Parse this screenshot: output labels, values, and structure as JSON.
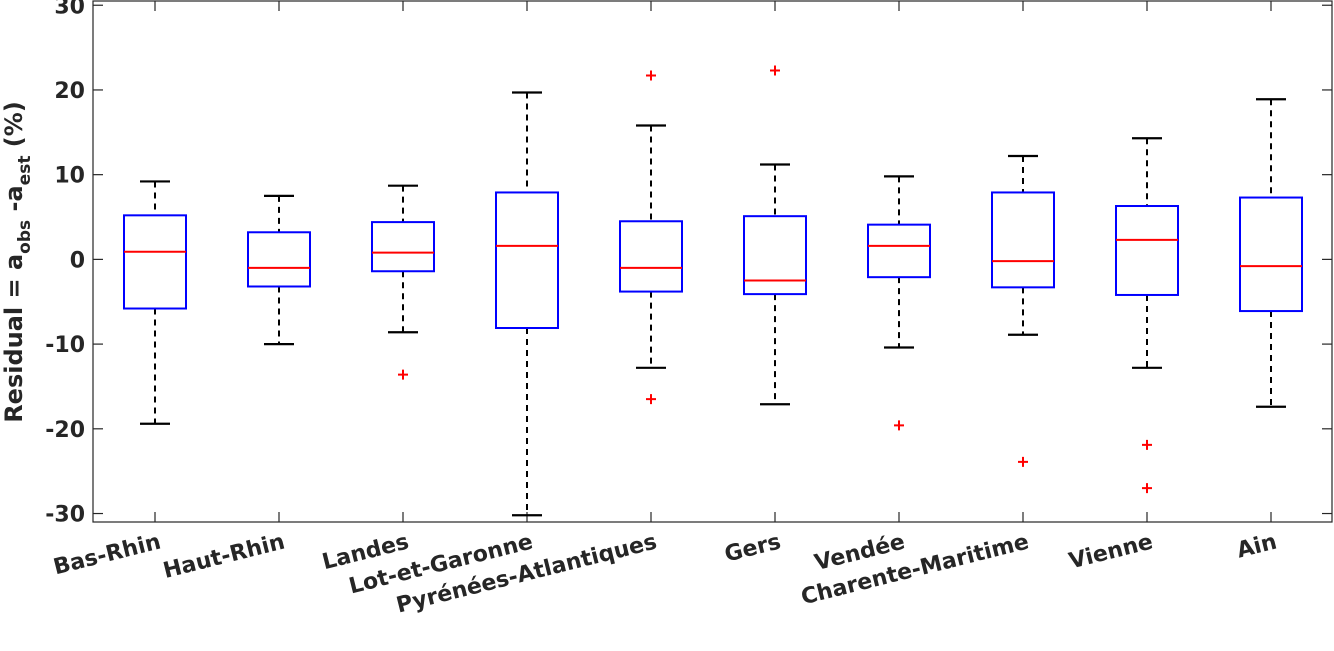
{
  "chart_data": {
    "type": "box",
    "title": "",
    "xlabel": "",
    "ylabel": {
      "main": "Residual = a",
      "sub1": "obs",
      "mid": " -a",
      "sub2": "est",
      "end": " (%)"
    },
    "ylim": [
      -31,
      30.5
    ],
    "yticks": [
      30,
      20,
      10,
      0,
      -10,
      -20,
      -30
    ],
    "ytick_labels": [
      "30",
      "20",
      "10",
      "0",
      "-10",
      "-20",
      "-30"
    ],
    "grid": false,
    "colors": {
      "box": "#0000ff",
      "median": "#ff0000",
      "whisker": "#000000",
      "outlier": "#ff0000"
    },
    "categories": [
      "Bas-Rhin",
      "Haut-Rhin",
      "Landes",
      "Lot-et-Garonne",
      "Pyrénées-Atlantiques",
      "Gers",
      "Vendée",
      "Charente-Maritime",
      "Vienne",
      "Ain"
    ],
    "boxes": [
      {
        "q1": -5.8,
        "median": 0.9,
        "q3": 5.2,
        "whisker_low": -19.4,
        "whisker_high": 9.2,
        "outliers": []
      },
      {
        "q1": -3.2,
        "median": -1.0,
        "q3": 3.2,
        "whisker_low": -10.0,
        "whisker_high": 7.5,
        "outliers": []
      },
      {
        "q1": -1.4,
        "median": 0.8,
        "q3": 4.4,
        "whisker_low": -8.6,
        "whisker_high": 8.7,
        "outliers": [
          -13.6
        ]
      },
      {
        "q1": -8.1,
        "median": 1.6,
        "q3": 7.9,
        "whisker_low": -30.2,
        "whisker_high": 19.7,
        "outliers": []
      },
      {
        "q1": -3.8,
        "median": -1.0,
        "q3": 4.5,
        "whisker_low": -12.8,
        "whisker_high": 15.8,
        "outliers": [
          21.7,
          -16.5
        ]
      },
      {
        "q1": -4.1,
        "median": -2.5,
        "q3": 5.1,
        "whisker_low": -17.1,
        "whisker_high": 11.2,
        "outliers": [
          22.3
        ]
      },
      {
        "q1": -2.1,
        "median": 1.6,
        "q3": 4.1,
        "whisker_low": -10.4,
        "whisker_high": 9.8,
        "outliers": [
          -19.6
        ]
      },
      {
        "q1": -3.3,
        "median": -0.2,
        "q3": 7.9,
        "whisker_low": -8.9,
        "whisker_high": 12.2,
        "outliers": [
          -23.9
        ]
      },
      {
        "q1": -4.2,
        "median": 2.3,
        "q3": 6.3,
        "whisker_low": -12.8,
        "whisker_high": 14.3,
        "outliers": [
          -21.9,
          -27.0
        ]
      },
      {
        "q1": -6.1,
        "median": -0.8,
        "q3": 7.3,
        "whisker_low": -17.4,
        "whisker_high": 18.9,
        "outliers": []
      }
    ]
  }
}
